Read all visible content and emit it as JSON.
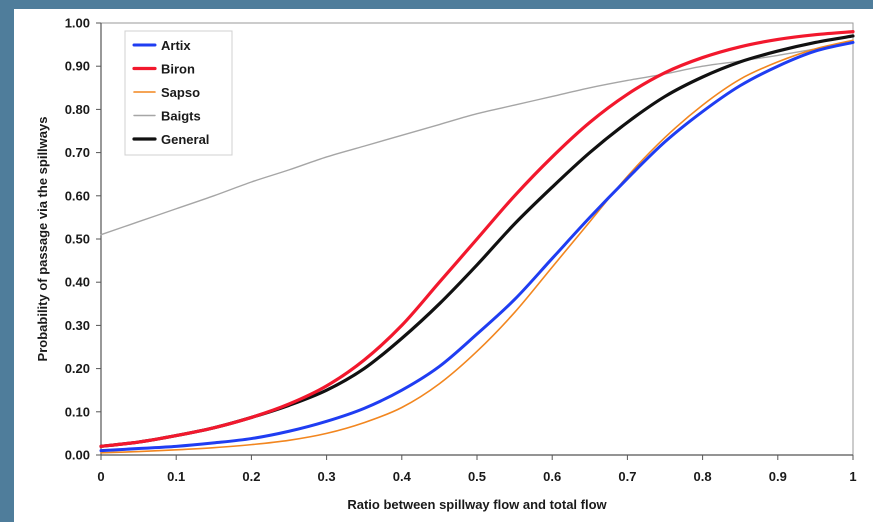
{
  "chart_data": {
    "type": "line",
    "title": "",
    "xlabel": "Ratio between spillway flow and total flow",
    "ylabel": "Probability of passage via the spillways",
    "xlim": [
      0,
      1
    ],
    "ylim": [
      0,
      1
    ],
    "x_ticks": [
      "0",
      "0.1",
      "0.2",
      "0.3",
      "0.4",
      "0.5",
      "0.6",
      "0.7",
      "0.8",
      "0.9",
      "1"
    ],
    "y_ticks": [
      "0.00",
      "0.10",
      "0.20",
      "0.30",
      "0.40",
      "0.50",
      "0.60",
      "0.70",
      "0.80",
      "0.90",
      "1.00"
    ],
    "grid": false,
    "legend_position": "top-left",
    "x": [
      0,
      0.05,
      0.1,
      0.15,
      0.2,
      0.25,
      0.3,
      0.35,
      0.4,
      0.45,
      0.5,
      0.55,
      0.6,
      0.65,
      0.7,
      0.75,
      0.8,
      0.85,
      0.9,
      0.95,
      1
    ],
    "series": [
      {
        "name": "Artix",
        "color": "#1f3df2",
        "values": [
          0.01,
          0.015,
          0.02,
          0.028,
          0.038,
          0.055,
          0.078,
          0.108,
          0.15,
          0.205,
          0.28,
          0.36,
          0.455,
          0.55,
          0.64,
          0.725,
          0.795,
          0.855,
          0.9,
          0.935,
          0.955
        ]
      },
      {
        "name": "Biron",
        "color": "#f2182d",
        "values": [
          0.02,
          0.03,
          0.045,
          0.063,
          0.087,
          0.118,
          0.16,
          0.22,
          0.3,
          0.4,
          0.5,
          0.6,
          0.69,
          0.77,
          0.835,
          0.885,
          0.92,
          0.945,
          0.962,
          0.973,
          0.98
        ]
      },
      {
        "name": "Sapso",
        "color": "#f2861f",
        "values": [
          0.005,
          0.008,
          0.012,
          0.017,
          0.024,
          0.034,
          0.05,
          0.075,
          0.11,
          0.165,
          0.24,
          0.33,
          0.435,
          0.54,
          0.645,
          0.735,
          0.81,
          0.87,
          0.91,
          0.94,
          0.96
        ]
      },
      {
        "name": "Baigts",
        "color": "#a6a6a6",
        "values": [
          0.51,
          0.54,
          0.57,
          0.6,
          0.632,
          0.66,
          0.69,
          0.715,
          0.74,
          0.765,
          0.79,
          0.81,
          0.83,
          0.85,
          0.867,
          0.882,
          0.9,
          0.912,
          0.925,
          0.94,
          0.955
        ]
      },
      {
        "name": "General",
        "color": "#111111",
        "values": [
          0.02,
          0.03,
          0.045,
          0.063,
          0.087,
          0.115,
          0.15,
          0.2,
          0.27,
          0.35,
          0.44,
          0.535,
          0.62,
          0.7,
          0.77,
          0.83,
          0.875,
          0.91,
          0.935,
          0.955,
          0.97
        ]
      }
    ]
  }
}
